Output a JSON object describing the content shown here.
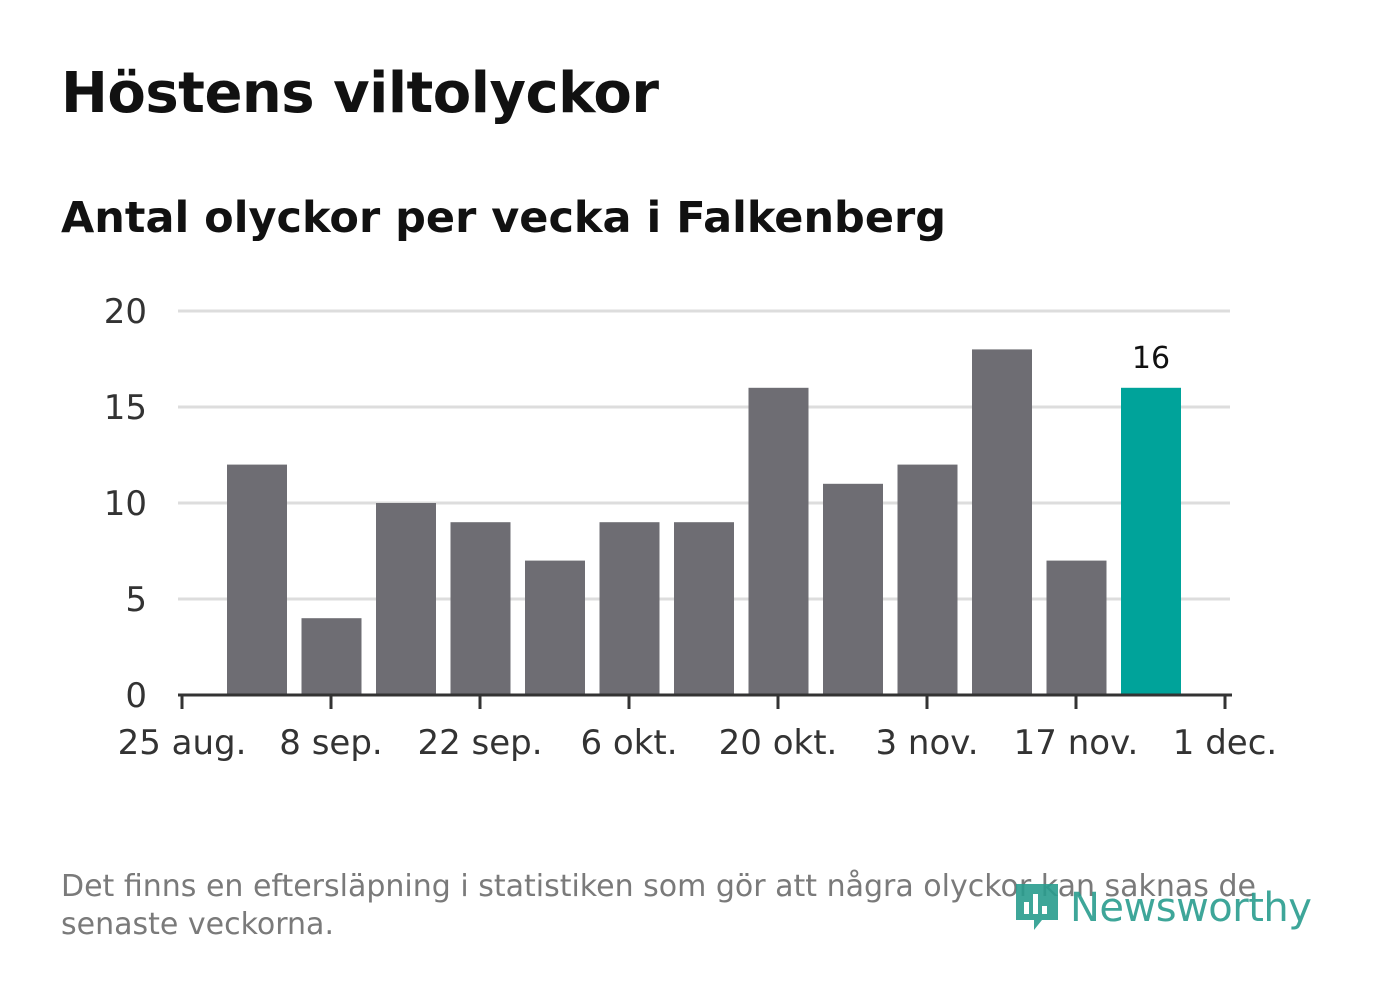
{
  "title": "Höstens viltolyckor",
  "subtitle": "Antal olyckor per vecka i Falkenberg",
  "footnote": "Det finns en eftersläpning i statistiken som gör att några olyckor kan saknas de senaste veckorna.",
  "logo": {
    "text": "Newsworthy",
    "icon": "newsworthy-logo-icon",
    "color": "#2a9d8f"
  },
  "colors": {
    "bar": "#6e6d73",
    "highlight": "#00a39a",
    "grid": "#dddddd",
    "axis": "#333333"
  },
  "chart_data": {
    "type": "bar",
    "title": "",
    "xlabel": "",
    "ylabel": "",
    "ylim": [
      0,
      20
    ],
    "yticks": [
      "0",
      "5",
      "10",
      "15",
      "20"
    ],
    "x_tick_labels": [
      "25 aug.",
      "8 sep.",
      "22 sep.",
      "6 okt.",
      "20 okt.",
      "3 nov.",
      "17 nov.",
      "1 dec."
    ],
    "values": [
      12,
      4,
      10,
      9,
      7,
      9,
      9,
      16,
      11,
      12,
      18,
      7,
      16
    ],
    "highlight_index": 12,
    "data_labels": [
      {
        "index": 12,
        "text": "16"
      }
    ],
    "grid": true
  }
}
